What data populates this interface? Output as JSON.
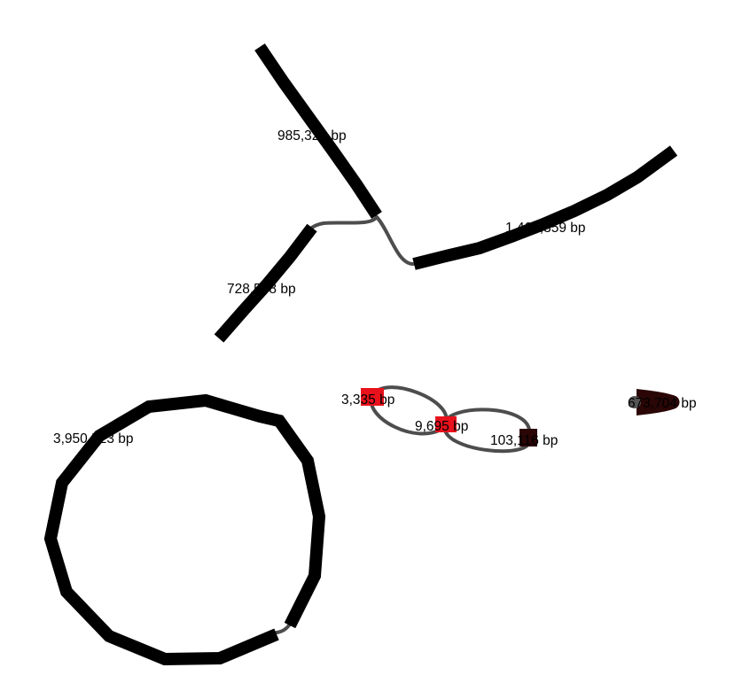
{
  "graph": {
    "colors": {
      "segment": "#000000",
      "link": "#4d4d4d",
      "red_node": "#e8111c",
      "dark_node": "#2a0606",
      "background": "#ffffff"
    },
    "contigs": [
      {
        "id": "c1",
        "label": "985,324 bp"
      },
      {
        "id": "c2",
        "label": "1,466,359 bp"
      },
      {
        "id": "c3",
        "label": "728,578 bp"
      },
      {
        "id": "c4",
        "label": "3,950,523 bp"
      },
      {
        "id": "c5",
        "label": "3,335 bp"
      },
      {
        "id": "c6",
        "label": "9,695 bp"
      },
      {
        "id": "c7",
        "label": "103,116 bp"
      },
      {
        "id": "c8",
        "label": "673,704 bp"
      }
    ]
  }
}
